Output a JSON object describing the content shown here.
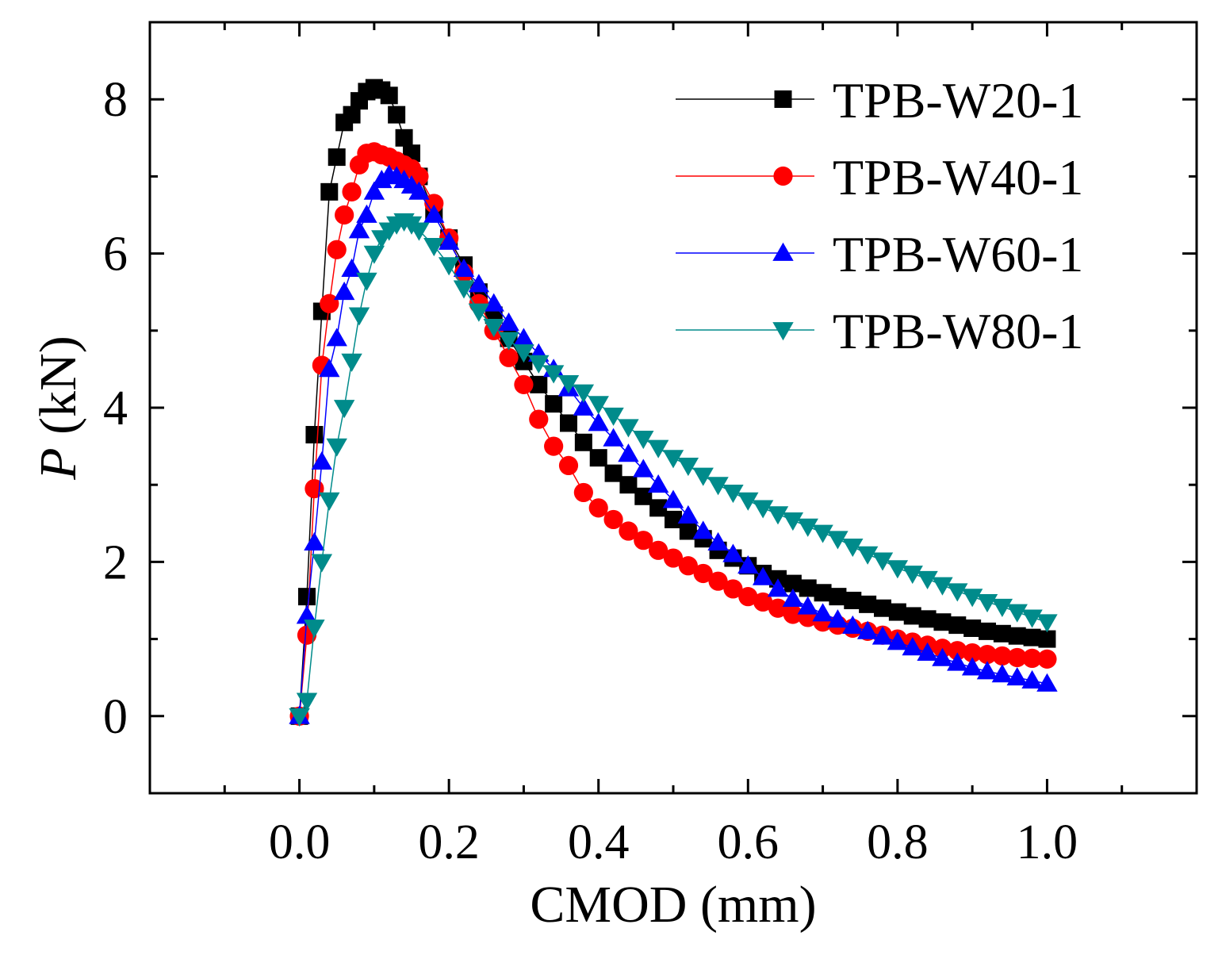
{
  "chart_data": {
    "type": "line",
    "title": "",
    "xlabel": "CMOD (mm)",
    "ylabel_italic": "P",
    "ylabel_rest": " (kN)",
    "xlim": [
      -0.2,
      1.2
    ],
    "ylim": [
      -1,
      9
    ],
    "xticks": [
      0.0,
      0.2,
      0.4,
      0.6,
      0.8,
      1.0
    ],
    "xtick_labels": [
      "0.0",
      "0.2",
      "0.4",
      "0.6",
      "0.8",
      "1.0"
    ],
    "yticks": [
      0,
      2,
      4,
      6,
      8
    ],
    "ytick_labels": [
      "0",
      "2",
      "4",
      "6",
      "8"
    ],
    "legend_position": "top-right",
    "grid": false,
    "series": [
      {
        "name": "TPB-W20-1",
        "color": "#000000",
        "marker": "square",
        "points": [
          [
            0.0,
            0.0
          ],
          [
            0.01,
            1.55
          ],
          [
            0.02,
            3.65
          ],
          [
            0.03,
            5.25
          ],
          [
            0.04,
            6.8
          ],
          [
            0.05,
            7.25
          ],
          [
            0.06,
            7.7
          ],
          [
            0.07,
            7.8
          ],
          [
            0.08,
            7.98
          ],
          [
            0.09,
            8.1
          ],
          [
            0.1,
            8.15
          ],
          [
            0.11,
            8.12
          ],
          [
            0.12,
            8.05
          ],
          [
            0.13,
            7.8
          ],
          [
            0.14,
            7.5
          ],
          [
            0.15,
            7.3
          ],
          [
            0.16,
            7.0
          ],
          [
            0.18,
            6.55
          ],
          [
            0.2,
            6.2
          ],
          [
            0.22,
            5.85
          ],
          [
            0.24,
            5.5
          ],
          [
            0.26,
            5.2
          ],
          [
            0.28,
            4.9
          ],
          [
            0.3,
            4.6
          ],
          [
            0.32,
            4.3
          ],
          [
            0.34,
            4.05
          ],
          [
            0.36,
            3.8
          ],
          [
            0.38,
            3.55
          ],
          [
            0.4,
            3.35
          ],
          [
            0.42,
            3.15
          ],
          [
            0.44,
            3.0
          ],
          [
            0.46,
            2.85
          ],
          [
            0.48,
            2.7
          ],
          [
            0.5,
            2.55
          ],
          [
            0.52,
            2.4
          ],
          [
            0.54,
            2.3
          ],
          [
            0.56,
            2.15
          ],
          [
            0.58,
            2.05
          ],
          [
            0.6,
            1.95
          ],
          [
            0.62,
            1.85
          ],
          [
            0.64,
            1.78
          ],
          [
            0.66,
            1.72
          ],
          [
            0.68,
            1.66
          ],
          [
            0.7,
            1.6
          ],
          [
            0.72,
            1.55
          ],
          [
            0.74,
            1.5
          ],
          [
            0.76,
            1.45
          ],
          [
            0.78,
            1.4
          ],
          [
            0.8,
            1.35
          ],
          [
            0.82,
            1.3
          ],
          [
            0.84,
            1.26
          ],
          [
            0.86,
            1.22
          ],
          [
            0.88,
            1.18
          ],
          [
            0.9,
            1.14
          ],
          [
            0.92,
            1.1
          ],
          [
            0.94,
            1.07
          ],
          [
            0.96,
            1.04
          ],
          [
            0.98,
            1.02
          ],
          [
            1.0,
            1.0
          ]
        ]
      },
      {
        "name": "TPB-W40-1",
        "color": "#ff0000",
        "marker": "circle",
        "points": [
          [
            0.0,
            0.0
          ],
          [
            0.01,
            1.05
          ],
          [
            0.02,
            2.95
          ],
          [
            0.03,
            4.55
          ],
          [
            0.04,
            5.35
          ],
          [
            0.05,
            6.05
          ],
          [
            0.06,
            6.5
          ],
          [
            0.07,
            6.8
          ],
          [
            0.08,
            7.15
          ],
          [
            0.09,
            7.3
          ],
          [
            0.1,
            7.32
          ],
          [
            0.11,
            7.28
          ],
          [
            0.12,
            7.25
          ],
          [
            0.13,
            7.2
          ],
          [
            0.14,
            7.15
          ],
          [
            0.15,
            7.1
          ],
          [
            0.16,
            7.0
          ],
          [
            0.18,
            6.65
          ],
          [
            0.2,
            6.2
          ],
          [
            0.22,
            5.75
          ],
          [
            0.24,
            5.35
          ],
          [
            0.26,
            5.0
          ],
          [
            0.28,
            4.65
          ],
          [
            0.3,
            4.3
          ],
          [
            0.32,
            3.85
          ],
          [
            0.34,
            3.5
          ],
          [
            0.36,
            3.25
          ],
          [
            0.38,
            2.9
          ],
          [
            0.4,
            2.7
          ],
          [
            0.42,
            2.55
          ],
          [
            0.44,
            2.4
          ],
          [
            0.46,
            2.28
          ],
          [
            0.48,
            2.15
          ],
          [
            0.5,
            2.05
          ],
          [
            0.52,
            1.95
          ],
          [
            0.54,
            1.85
          ],
          [
            0.56,
            1.75
          ],
          [
            0.58,
            1.65
          ],
          [
            0.6,
            1.55
          ],
          [
            0.62,
            1.48
          ],
          [
            0.64,
            1.4
          ],
          [
            0.66,
            1.32
          ],
          [
            0.68,
            1.28
          ],
          [
            0.7,
            1.22
          ],
          [
            0.72,
            1.18
          ],
          [
            0.74,
            1.14
          ],
          [
            0.76,
            1.1
          ],
          [
            0.78,
            1.05
          ],
          [
            0.8,
            1.0
          ],
          [
            0.82,
            0.96
          ],
          [
            0.84,
            0.92
          ],
          [
            0.86,
            0.88
          ],
          [
            0.88,
            0.85
          ],
          [
            0.9,
            0.82
          ],
          [
            0.92,
            0.8
          ],
          [
            0.94,
            0.78
          ],
          [
            0.96,
            0.76
          ],
          [
            0.98,
            0.75
          ],
          [
            1.0,
            0.74
          ]
        ]
      },
      {
        "name": "TPB-W60-1",
        "color": "#0000ff",
        "marker": "triangle-up",
        "points": [
          [
            0.0,
            0.0
          ],
          [
            0.01,
            1.3
          ],
          [
            0.02,
            2.25
          ],
          [
            0.03,
            3.3
          ],
          [
            0.04,
            4.5
          ],
          [
            0.05,
            4.9
          ],
          [
            0.06,
            5.5
          ],
          [
            0.07,
            5.8
          ],
          [
            0.08,
            6.3
          ],
          [
            0.09,
            6.5
          ],
          [
            0.1,
            6.8
          ],
          [
            0.11,
            6.95
          ],
          [
            0.12,
            7.02
          ],
          [
            0.13,
            7.0
          ],
          [
            0.14,
            6.95
          ],
          [
            0.15,
            6.88
          ],
          [
            0.16,
            6.8
          ],
          [
            0.18,
            6.5
          ],
          [
            0.2,
            6.15
          ],
          [
            0.22,
            5.8
          ],
          [
            0.24,
            5.6
          ],
          [
            0.26,
            5.35
          ],
          [
            0.28,
            5.1
          ],
          [
            0.3,
            4.9
          ],
          [
            0.32,
            4.7
          ],
          [
            0.34,
            4.5
          ],
          [
            0.36,
            4.25
          ],
          [
            0.38,
            4.0
          ],
          [
            0.4,
            3.8
          ],
          [
            0.42,
            3.6
          ],
          [
            0.44,
            3.4
          ],
          [
            0.46,
            3.2
          ],
          [
            0.48,
            3.0
          ],
          [
            0.5,
            2.8
          ],
          [
            0.52,
            2.6
          ],
          [
            0.54,
            2.4
          ],
          [
            0.56,
            2.25
          ],
          [
            0.58,
            2.1
          ],
          [
            0.6,
            1.95
          ],
          [
            0.62,
            1.8
          ],
          [
            0.64,
            1.65
          ],
          [
            0.66,
            1.52
          ],
          [
            0.68,
            1.42
          ],
          [
            0.7,
            1.33
          ],
          [
            0.72,
            1.25
          ],
          [
            0.74,
            1.17
          ],
          [
            0.76,
            1.1
          ],
          [
            0.78,
            1.03
          ],
          [
            0.8,
            0.96
          ],
          [
            0.82,
            0.89
          ],
          [
            0.84,
            0.82
          ],
          [
            0.86,
            0.75
          ],
          [
            0.88,
            0.69
          ],
          [
            0.9,
            0.63
          ],
          [
            0.92,
            0.58
          ],
          [
            0.94,
            0.54
          ],
          [
            0.96,
            0.5
          ],
          [
            0.98,
            0.46
          ],
          [
            1.0,
            0.42
          ]
        ]
      },
      {
        "name": "TPB-W80-1",
        "color": "#008b8b",
        "marker": "triangle-down",
        "points": [
          [
            0.0,
            0.0
          ],
          [
            0.01,
            0.2
          ],
          [
            0.02,
            1.15
          ],
          [
            0.03,
            2.0
          ],
          [
            0.04,
            2.8
          ],
          [
            0.05,
            3.5
          ],
          [
            0.06,
            4.0
          ],
          [
            0.07,
            4.6
          ],
          [
            0.08,
            5.2
          ],
          [
            0.09,
            5.65
          ],
          [
            0.1,
            6.0
          ],
          [
            0.11,
            6.2
          ],
          [
            0.12,
            6.3
          ],
          [
            0.13,
            6.38
          ],
          [
            0.14,
            6.42
          ],
          [
            0.15,
            6.38
          ],
          [
            0.16,
            6.3
          ],
          [
            0.18,
            6.1
          ],
          [
            0.2,
            5.85
          ],
          [
            0.22,
            5.55
          ],
          [
            0.24,
            5.25
          ],
          [
            0.26,
            5.05
          ],
          [
            0.28,
            4.88
          ],
          [
            0.3,
            4.72
          ],
          [
            0.32,
            4.58
          ],
          [
            0.34,
            4.45
          ],
          [
            0.36,
            4.32
          ],
          [
            0.38,
            4.2
          ],
          [
            0.4,
            4.05
          ],
          [
            0.42,
            3.9
          ],
          [
            0.44,
            3.75
          ],
          [
            0.46,
            3.6
          ],
          [
            0.48,
            3.48
          ],
          [
            0.5,
            3.35
          ],
          [
            0.52,
            3.25
          ],
          [
            0.54,
            3.12
          ],
          [
            0.56,
            3.0
          ],
          [
            0.58,
            2.9
          ],
          [
            0.6,
            2.8
          ],
          [
            0.62,
            2.7
          ],
          [
            0.64,
            2.62
          ],
          [
            0.66,
            2.54
          ],
          [
            0.68,
            2.46
          ],
          [
            0.7,
            2.38
          ],
          [
            0.72,
            2.3
          ],
          [
            0.74,
            2.2
          ],
          [
            0.76,
            2.1
          ],
          [
            0.78,
            2.02
          ],
          [
            0.8,
            1.92
          ],
          [
            0.82,
            1.85
          ],
          [
            0.84,
            1.78
          ],
          [
            0.86,
            1.7
          ],
          [
            0.88,
            1.62
          ],
          [
            0.9,
            1.55
          ],
          [
            0.92,
            1.48
          ],
          [
            0.94,
            1.42
          ],
          [
            0.96,
            1.35
          ],
          [
            0.98,
            1.28
          ],
          [
            1.0,
            1.22
          ]
        ]
      }
    ]
  }
}
